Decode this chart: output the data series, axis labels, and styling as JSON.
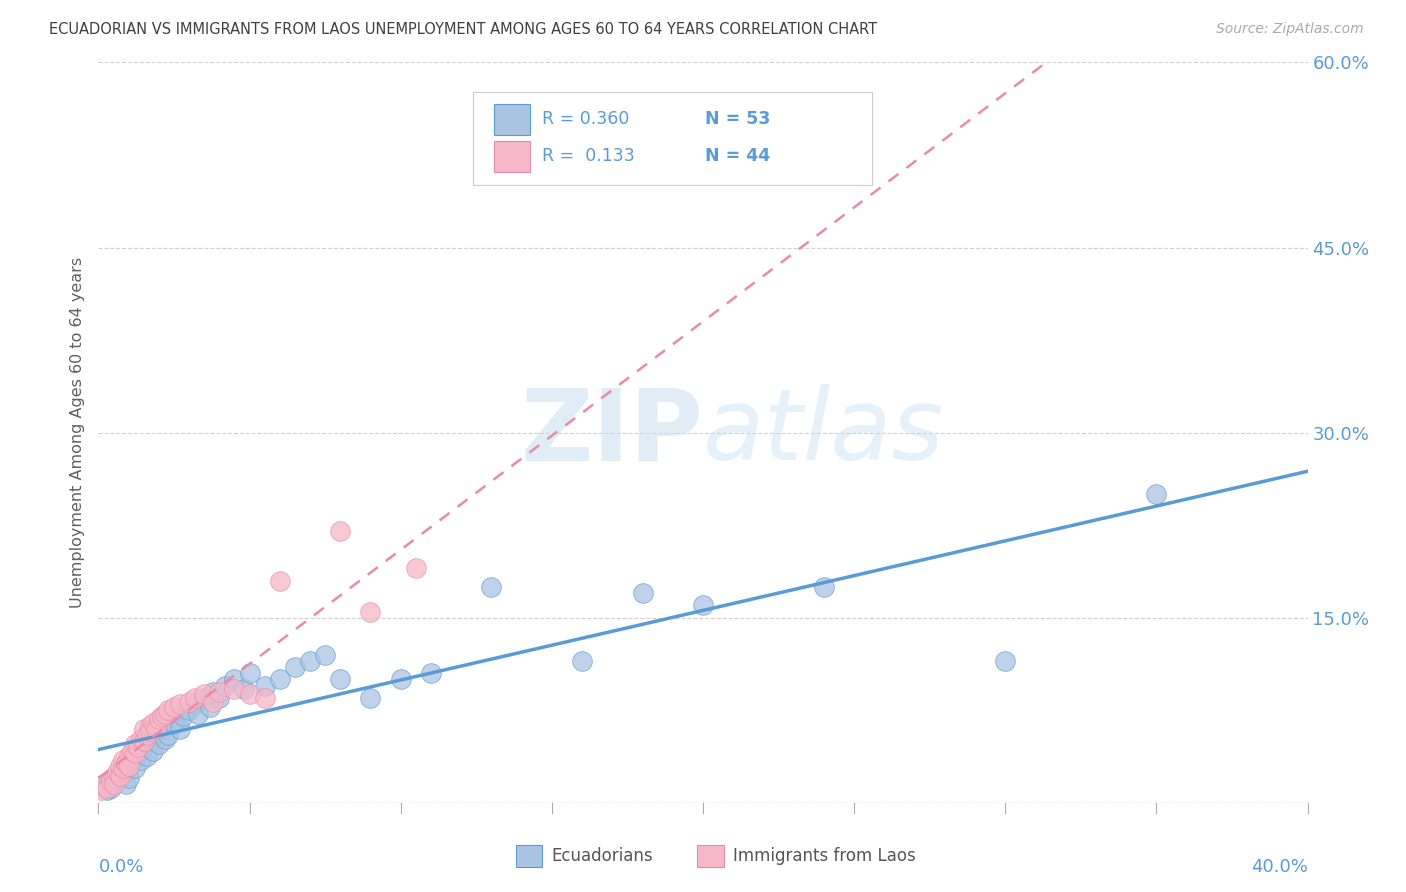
{
  "title": "ECUADORIAN VS IMMIGRANTS FROM LAOS UNEMPLOYMENT AMONG AGES 60 TO 64 YEARS CORRELATION CHART",
  "source": "Source: ZipAtlas.com",
  "ylabel": "Unemployment Among Ages 60 to 64 years",
  "xlim": [
    0.0,
    0.4
  ],
  "ylim": [
    0.0,
    0.6
  ],
  "yticks": [
    0.0,
    0.15,
    0.3,
    0.45,
    0.6
  ],
  "watermark_zip": "ZIP",
  "watermark_atlas": "atlas",
  "blue_color": "#aac4e2",
  "pink_color": "#f5b8c8",
  "blue_line_color": "#5b9bd5",
  "pink_line_color": "#e88aa8",
  "r_blue": 0.36,
  "n_blue": 53,
  "r_pink": 0.133,
  "n_pink": 44,
  "legend_label_blue": "Ecuadorians",
  "legend_label_pink": "Immigrants from Laos",
  "blue_scatter_x": [
    0.002,
    0.003,
    0.004,
    0.005,
    0.006,
    0.007,
    0.008,
    0.009,
    0.01,
    0.01,
    0.011,
    0.012,
    0.013,
    0.014,
    0.015,
    0.016,
    0.017,
    0.018,
    0.019,
    0.02,
    0.021,
    0.022,
    0.023,
    0.025,
    0.027,
    0.028,
    0.03,
    0.032,
    0.033,
    0.035,
    0.037,
    0.038,
    0.04,
    0.042,
    0.045,
    0.048,
    0.05,
    0.055,
    0.06,
    0.065,
    0.07,
    0.075,
    0.08,
    0.09,
    0.1,
    0.11,
    0.13,
    0.16,
    0.18,
    0.2,
    0.24,
    0.3,
    0.35
  ],
  "blue_scatter_y": [
    0.015,
    0.01,
    0.012,
    0.018,
    0.02,
    0.022,
    0.025,
    0.015,
    0.03,
    0.02,
    0.035,
    0.028,
    0.04,
    0.035,
    0.045,
    0.038,
    0.05,
    0.042,
    0.055,
    0.048,
    0.06,
    0.052,
    0.055,
    0.065,
    0.06,
    0.07,
    0.075,
    0.08,
    0.072,
    0.085,
    0.078,
    0.09,
    0.085,
    0.095,
    0.1,
    0.092,
    0.105,
    0.095,
    0.1,
    0.11,
    0.115,
    0.12,
    0.1,
    0.085,
    0.1,
    0.105,
    0.175,
    0.115,
    0.17,
    0.16,
    0.175,
    0.115,
    0.25
  ],
  "pink_scatter_x": [
    0.001,
    0.002,
    0.003,
    0.004,
    0.005,
    0.005,
    0.006,
    0.007,
    0.007,
    0.008,
    0.008,
    0.009,
    0.01,
    0.01,
    0.011,
    0.012,
    0.012,
    0.013,
    0.014,
    0.015,
    0.015,
    0.016,
    0.017,
    0.017,
    0.018,
    0.019,
    0.02,
    0.021,
    0.022,
    0.023,
    0.025,
    0.027,
    0.03,
    0.032,
    0.035,
    0.038,
    0.04,
    0.045,
    0.05,
    0.055,
    0.06,
    0.08,
    0.09,
    0.105
  ],
  "pink_scatter_y": [
    0.01,
    0.015,
    0.012,
    0.018,
    0.02,
    0.015,
    0.025,
    0.022,
    0.03,
    0.028,
    0.035,
    0.032,
    0.038,
    0.03,
    0.042,
    0.04,
    0.048,
    0.045,
    0.052,
    0.05,
    0.06,
    0.055,
    0.062,
    0.058,
    0.065,
    0.06,
    0.068,
    0.07,
    0.072,
    0.075,
    0.078,
    0.08,
    0.082,
    0.085,
    0.088,
    0.082,
    0.09,
    0.092,
    0.088,
    0.085,
    0.18,
    0.22,
    0.155,
    0.19
  ],
  "background_color": "#ffffff",
  "grid_color": "#d0d0d0",
  "title_color": "#404040",
  "source_color": "#aaaaaa",
  "axis_label_color": "#5b9bd5",
  "ylabel_color": "#606060"
}
